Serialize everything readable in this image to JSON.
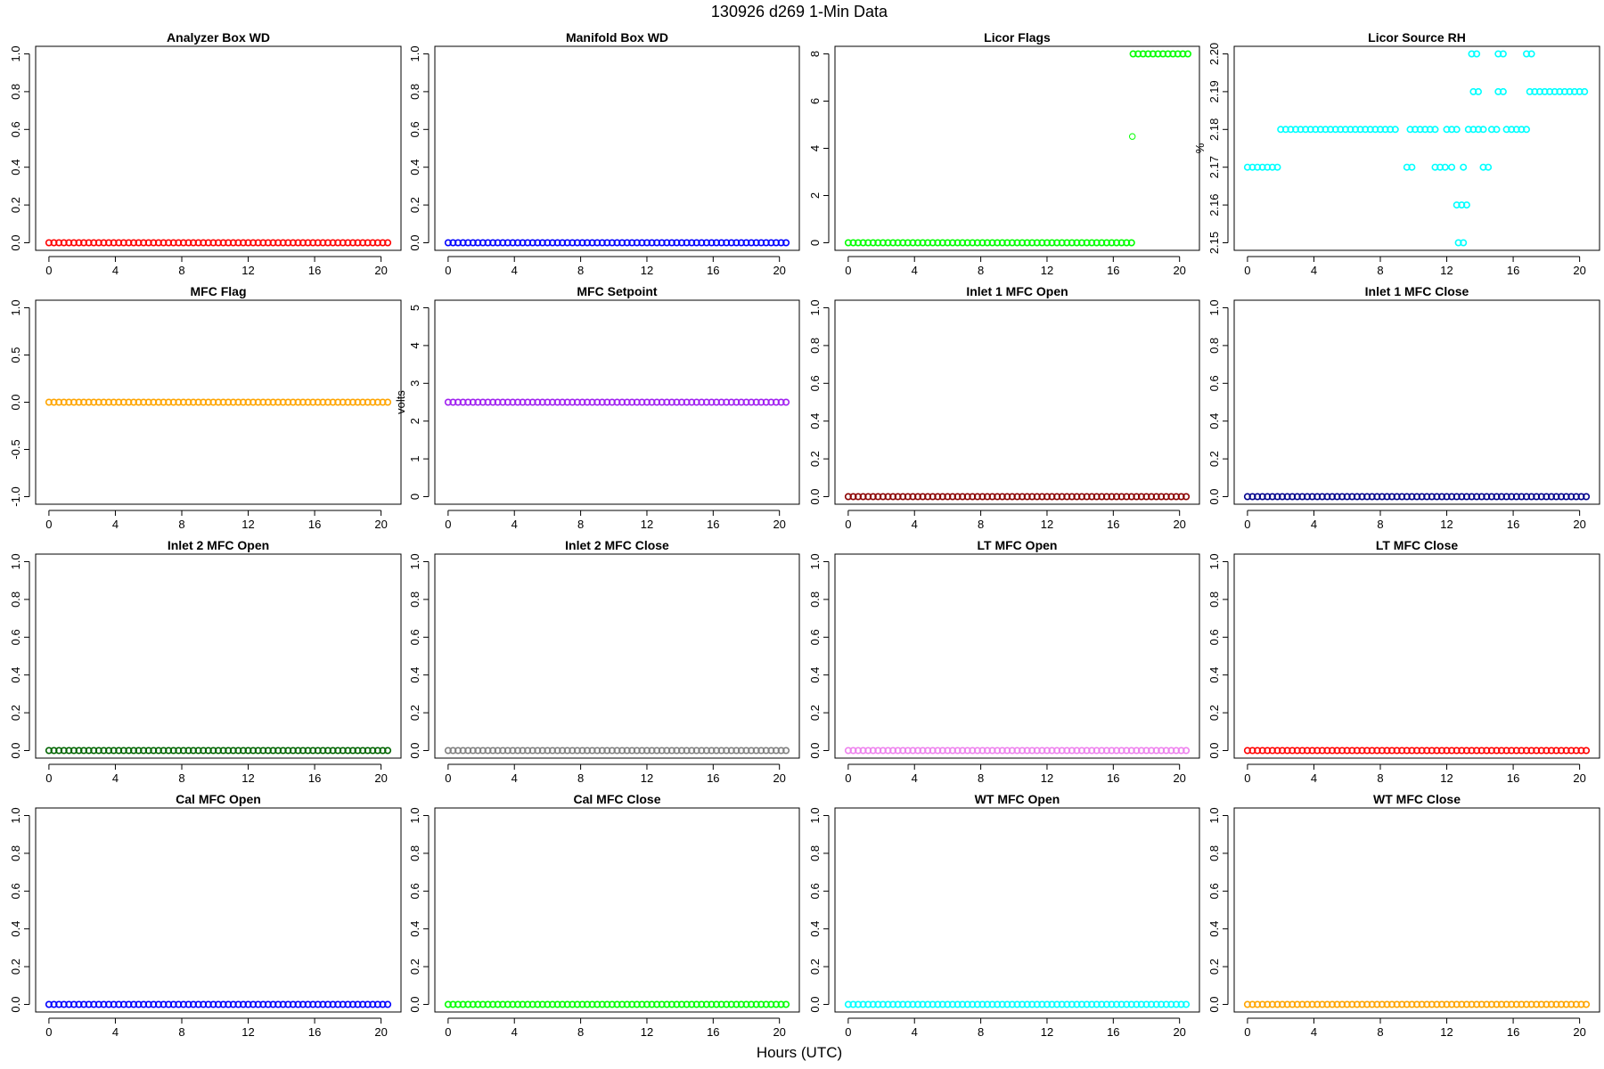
{
  "figure": {
    "title": "130926   d269   1-Min Data",
    "xlabel": "Hours (UTC)"
  },
  "chart_data": [
    {
      "type": "scatter",
      "title": "Analyzer Box WD",
      "ylabel": "",
      "color": "#ff0000",
      "xlim": [
        -0.8,
        21.2
      ],
      "ylim": [
        -0.04,
        1.04
      ],
      "xticks": [
        0,
        4,
        8,
        12,
        16,
        20
      ],
      "yticks": [
        0.0,
        0.2,
        0.4,
        0.6,
        0.8,
        1.0
      ],
      "ytick_labels": [
        "0.0",
        "0.2",
        "0.4",
        "0.6",
        "0.8",
        "1.0"
      ],
      "series": [
        {
          "segments": [
            {
              "x0": 0,
              "x1": 20.5,
              "y": 0
            }
          ],
          "points": []
        }
      ]
    },
    {
      "type": "scatter",
      "title": "Manifold Box WD",
      "ylabel": "",
      "color": "#0000ff",
      "xlim": [
        -0.8,
        21.2
      ],
      "ylim": [
        -0.04,
        1.04
      ],
      "xticks": [
        0,
        4,
        8,
        12,
        16,
        20
      ],
      "yticks": [
        0.0,
        0.2,
        0.4,
        0.6,
        0.8,
        1.0
      ],
      "ytick_labels": [
        "0.0",
        "0.2",
        "0.4",
        "0.6",
        "0.8",
        "1.0"
      ],
      "series": [
        {
          "segments": [
            {
              "x0": 0,
              "x1": 20.5,
              "y": 0
            }
          ],
          "points": []
        }
      ]
    },
    {
      "type": "scatter",
      "title": "Licor Flags",
      "ylabel": "",
      "color": "#00ff00",
      "xlim": [
        -0.8,
        21.2
      ],
      "ylim": [
        -0.32,
        8.32
      ],
      "xticks": [
        0,
        4,
        8,
        12,
        16,
        20
      ],
      "yticks": [
        0,
        2,
        4,
        6,
        8
      ],
      "ytick_labels": [
        "0",
        "2",
        "4",
        "6",
        "8"
      ],
      "series": [
        {
          "segments": [
            {
              "x0": 0,
              "x1": 17.1,
              "y": 0
            },
            {
              "x0": 17.2,
              "x1": 20.5,
              "y": 8
            }
          ],
          "points": [
            [
              17.15,
              4.5
            ]
          ]
        }
      ]
    },
    {
      "type": "scatter",
      "title": "Licor Source RH",
      "ylabel": "%",
      "color": "#00ffff",
      "xlim": [
        -0.8,
        21.2
      ],
      "ylim": [
        2.148,
        2.202
      ],
      "xticks": [
        0,
        4,
        8,
        12,
        16,
        20
      ],
      "yticks": [
        2.15,
        2.16,
        2.17,
        2.18,
        2.19,
        2.2
      ],
      "ytick_labels": [
        "2.15",
        "2.16",
        "2.17",
        "2.18",
        "2.19",
        "2.20"
      ],
      "series": [
        {
          "segments": [
            {
              "x0": 0,
              "x1": 2.0,
              "y": 2.17
            },
            {
              "x0": 2.0,
              "x1": 9.0,
              "y": 2.18
            },
            {
              "x0": 9.8,
              "x1": 11.5,
              "y": 2.18
            },
            {
              "x0": 12.0,
              "x1": 12.8,
              "y": 2.18
            },
            {
              "x0": 13.3,
              "x1": 13.6,
              "y": 2.18
            },
            {
              "x0": 13.9,
              "x1": 14.3,
              "y": 2.18
            },
            {
              "x0": 14.7,
              "x1": 15.2,
              "y": 2.18
            },
            {
              "x0": 15.6,
              "x1": 17.0,
              "y": 2.18
            },
            {
              "x0": 17.0,
              "x1": 20.5,
              "y": 2.19
            },
            {
              "x0": 9.6,
              "x1": 9.9,
              "y": 2.17
            },
            {
              "x0": 11.3,
              "x1": 11.9,
              "y": 2.17
            },
            {
              "x0": 12.3,
              "x1": 12.5,
              "y": 2.17
            },
            {
              "x0": 13.0,
              "x1": 13.2,
              "y": 2.17
            },
            {
              "x0": 14.2,
              "x1": 14.7,
              "y": 2.17
            },
            {
              "x0": 12.6,
              "x1": 13.2,
              "y": 2.16
            },
            {
              "x0": 12.7,
              "x1": 13.0,
              "y": 2.15
            },
            {
              "x0": 13.6,
              "x1": 14.1,
              "y": 2.19
            },
            {
              "x0": 15.1,
              "x1": 15.6,
              "y": 2.19
            },
            {
              "x0": 13.5,
              "x1": 14.0,
              "y": 2.2
            },
            {
              "x0": 15.1,
              "x1": 15.6,
              "y": 2.2
            },
            {
              "x0": 16.8,
              "x1": 17.2,
              "y": 2.2
            }
          ],
          "points": []
        }
      ]
    },
    {
      "type": "scatter",
      "title": "MFC Flag",
      "ylabel": "",
      "color": "#ffa500",
      "xlim": [
        -0.8,
        21.2
      ],
      "ylim": [
        -1.08,
        1.08
      ],
      "xticks": [
        0,
        4,
        8,
        12,
        16,
        20
      ],
      "yticks": [
        -1.0,
        -0.5,
        0.0,
        0.5,
        1.0
      ],
      "ytick_labels": [
        "-1.0",
        "-0.5",
        "0.0",
        "0.5",
        "1.0"
      ],
      "series": [
        {
          "segments": [
            {
              "x0": 0,
              "x1": 20.5,
              "y": 0
            }
          ],
          "points": []
        }
      ]
    },
    {
      "type": "scatter",
      "title": "MFC Setpoint",
      "ylabel": "volts",
      "color": "#a020f0",
      "xlim": [
        -0.8,
        21.2
      ],
      "ylim": [
        -0.2,
        5.2
      ],
      "xticks": [
        0,
        4,
        8,
        12,
        16,
        20
      ],
      "yticks": [
        0,
        1,
        2,
        3,
        4,
        5
      ],
      "ytick_labels": [
        "0",
        "1",
        "2",
        "3",
        "4",
        "5"
      ],
      "series": [
        {
          "segments": [
            {
              "x0": 0,
              "x1": 20.5,
              "y": 2.5
            }
          ],
          "points": []
        }
      ]
    },
    {
      "type": "scatter",
      "title": "Inlet 1 MFC Open",
      "ylabel": "",
      "color": "#8b0000",
      "xlim": [
        -0.8,
        21.2
      ],
      "ylim": [
        -0.04,
        1.04
      ],
      "xticks": [
        0,
        4,
        8,
        12,
        16,
        20
      ],
      "yticks": [
        0.0,
        0.2,
        0.4,
        0.6,
        0.8,
        1.0
      ],
      "ytick_labels": [
        "0.0",
        "0.2",
        "0.4",
        "0.6",
        "0.8",
        "1.0"
      ],
      "series": [
        {
          "segments": [
            {
              "x0": 0,
              "x1": 20.5,
              "y": 0
            }
          ],
          "points": []
        }
      ]
    },
    {
      "type": "scatter",
      "title": "Inlet 1 MFC Close",
      "ylabel": "",
      "color": "#00008b",
      "xlim": [
        -0.8,
        21.2
      ],
      "ylim": [
        -0.04,
        1.04
      ],
      "xticks": [
        0,
        4,
        8,
        12,
        16,
        20
      ],
      "yticks": [
        0.0,
        0.2,
        0.4,
        0.6,
        0.8,
        1.0
      ],
      "ytick_labels": [
        "0.0",
        "0.2",
        "0.4",
        "0.6",
        "0.8",
        "1.0"
      ],
      "series": [
        {
          "segments": [
            {
              "x0": 0,
              "x1": 20.5,
              "y": 0
            }
          ],
          "points": []
        }
      ]
    },
    {
      "type": "scatter",
      "title": "Inlet 2 MFC Open",
      "ylabel": "",
      "color": "#006400",
      "xlim": [
        -0.8,
        21.2
      ],
      "ylim": [
        -0.04,
        1.04
      ],
      "xticks": [
        0,
        4,
        8,
        12,
        16,
        20
      ],
      "yticks": [
        0.0,
        0.2,
        0.4,
        0.6,
        0.8,
        1.0
      ],
      "ytick_labels": [
        "0.0",
        "0.2",
        "0.4",
        "0.6",
        "0.8",
        "1.0"
      ],
      "series": [
        {
          "segments": [
            {
              "x0": 0,
              "x1": 20.5,
              "y": 0
            }
          ],
          "points": []
        }
      ]
    },
    {
      "type": "scatter",
      "title": "Inlet 2 MFC Close",
      "ylabel": "",
      "color": "#808080",
      "xlim": [
        -0.8,
        21.2
      ],
      "ylim": [
        -0.04,
        1.04
      ],
      "xticks": [
        0,
        4,
        8,
        12,
        16,
        20
      ],
      "yticks": [
        0.0,
        0.2,
        0.4,
        0.6,
        0.8,
        1.0
      ],
      "ytick_labels": [
        "0.0",
        "0.2",
        "0.4",
        "0.6",
        "0.8",
        "1.0"
      ],
      "series": [
        {
          "segments": [
            {
              "x0": 0,
              "x1": 20.5,
              "y": 0
            }
          ],
          "points": []
        }
      ]
    },
    {
      "type": "scatter",
      "title": "LT MFC Open",
      "ylabel": "",
      "color": "#ee82ee",
      "xlim": [
        -0.8,
        21.2
      ],
      "ylim": [
        -0.04,
        1.04
      ],
      "xticks": [
        0,
        4,
        8,
        12,
        16,
        20
      ],
      "yticks": [
        0.0,
        0.2,
        0.4,
        0.6,
        0.8,
        1.0
      ],
      "ytick_labels": [
        "0.0",
        "0.2",
        "0.4",
        "0.6",
        "0.8",
        "1.0"
      ],
      "series": [
        {
          "segments": [
            {
              "x0": 0,
              "x1": 20.5,
              "y": 0
            }
          ],
          "points": []
        }
      ]
    },
    {
      "type": "scatter",
      "title": "LT MFC Close",
      "ylabel": "",
      "color": "#ff0000",
      "xlim": [
        -0.8,
        21.2
      ],
      "ylim": [
        -0.04,
        1.04
      ],
      "xticks": [
        0,
        4,
        8,
        12,
        16,
        20
      ],
      "yticks": [
        0.0,
        0.2,
        0.4,
        0.6,
        0.8,
        1.0
      ],
      "ytick_labels": [
        "0.0",
        "0.2",
        "0.4",
        "0.6",
        "0.8",
        "1.0"
      ],
      "series": [
        {
          "segments": [
            {
              "x0": 0,
              "x1": 20.5,
              "y": 0
            }
          ],
          "points": []
        }
      ]
    },
    {
      "type": "scatter",
      "title": "Cal MFC Open",
      "ylabel": "",
      "color": "#0000ff",
      "xlim": [
        -0.8,
        21.2
      ],
      "ylim": [
        -0.04,
        1.04
      ],
      "xticks": [
        0,
        4,
        8,
        12,
        16,
        20
      ],
      "yticks": [
        0.0,
        0.2,
        0.4,
        0.6,
        0.8,
        1.0
      ],
      "ytick_labels": [
        "0.0",
        "0.2",
        "0.4",
        "0.6",
        "0.8",
        "1.0"
      ],
      "series": [
        {
          "segments": [
            {
              "x0": 0,
              "x1": 20.5,
              "y": 0
            }
          ],
          "points": []
        }
      ]
    },
    {
      "type": "scatter",
      "title": "Cal MFC Close",
      "ylabel": "",
      "color": "#00ff00",
      "xlim": [
        -0.8,
        21.2
      ],
      "ylim": [
        -0.04,
        1.04
      ],
      "xticks": [
        0,
        4,
        8,
        12,
        16,
        20
      ],
      "yticks": [
        0.0,
        0.2,
        0.4,
        0.6,
        0.8,
        1.0
      ],
      "ytick_labels": [
        "0.0",
        "0.2",
        "0.4",
        "0.6",
        "0.8",
        "1.0"
      ],
      "series": [
        {
          "segments": [
            {
              "x0": 0,
              "x1": 20.5,
              "y": 0
            }
          ],
          "points": []
        }
      ]
    },
    {
      "type": "scatter",
      "title": "WT MFC Open",
      "ylabel": "",
      "color": "#00ffff",
      "xlim": [
        -0.8,
        21.2
      ],
      "ylim": [
        -0.04,
        1.04
      ],
      "xticks": [
        0,
        4,
        8,
        12,
        16,
        20
      ],
      "yticks": [
        0.0,
        0.2,
        0.4,
        0.6,
        0.8,
        1.0
      ],
      "ytick_labels": [
        "0.0",
        "0.2",
        "0.4",
        "0.6",
        "0.8",
        "1.0"
      ],
      "series": [
        {
          "segments": [
            {
              "x0": 0,
              "x1": 20.5,
              "y": 0
            }
          ],
          "points": []
        }
      ]
    },
    {
      "type": "scatter",
      "title": "WT MFC Close",
      "ylabel": "",
      "color": "#ffa500",
      "xlim": [
        -0.8,
        21.2
      ],
      "ylim": [
        -0.04,
        1.04
      ],
      "xticks": [
        0,
        4,
        8,
        12,
        16,
        20
      ],
      "yticks": [
        0.0,
        0.2,
        0.4,
        0.6,
        0.8,
        1.0
      ],
      "ytick_labels": [
        "0.0",
        "0.2",
        "0.4",
        "0.6",
        "0.8",
        "1.0"
      ],
      "series": [
        {
          "segments": [
            {
              "x0": 0,
              "x1": 20.5,
              "y": 0
            }
          ],
          "points": []
        }
      ]
    }
  ]
}
